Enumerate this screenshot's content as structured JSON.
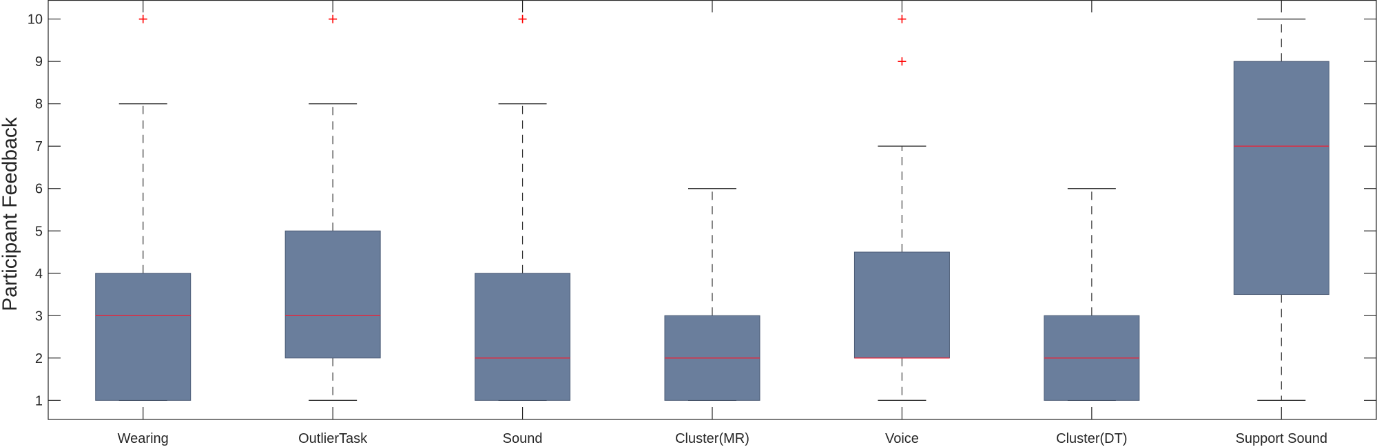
{
  "chart_data": {
    "type": "box",
    "title": "",
    "xlabel": "",
    "ylabel": "Participant Feedback",
    "ylim": [
      0.55,
      10.45
    ],
    "yticks": [
      1,
      2,
      3,
      4,
      5,
      6,
      7,
      8,
      9,
      10
    ],
    "categories": [
      "Wearing",
      "OutlierTask",
      "Sound",
      "Cluster(MR)",
      "Voice",
      "Cluster(DT)",
      "Support Sound"
    ],
    "boxes": [
      {
        "whisker_low": 1,
        "q1": 1,
        "median": 3,
        "q3": 4,
        "whisker_high": 8,
        "outliers": [
          10
        ]
      },
      {
        "whisker_low": 1,
        "q1": 2,
        "median": 3,
        "q3": 5,
        "whisker_high": 8,
        "outliers": [
          10
        ]
      },
      {
        "whisker_low": 1,
        "q1": 1,
        "median": 2,
        "q3": 4,
        "whisker_high": 8,
        "outliers": [
          10
        ]
      },
      {
        "whisker_low": 1,
        "q1": 1,
        "median": 2,
        "q3": 3,
        "whisker_high": 6,
        "outliers": []
      },
      {
        "whisker_low": 1,
        "q1": 2,
        "median": 2,
        "q3": 4.5,
        "whisker_high": 7,
        "outliers": [
          9,
          10
        ]
      },
      {
        "whisker_low": 1,
        "q1": 1,
        "median": 2,
        "q3": 3,
        "whisker_high": 6,
        "outliers": []
      },
      {
        "whisker_low": 1,
        "q1": 3.5,
        "median": 7,
        "q3": 9,
        "whisker_high": 10,
        "outliers": []
      }
    ],
    "colors": {
      "box_fill": "#6a7e9c",
      "median": "#e8253a",
      "outlier": "#ff0000",
      "whisker": "#333333",
      "axis": "#262626"
    }
  }
}
